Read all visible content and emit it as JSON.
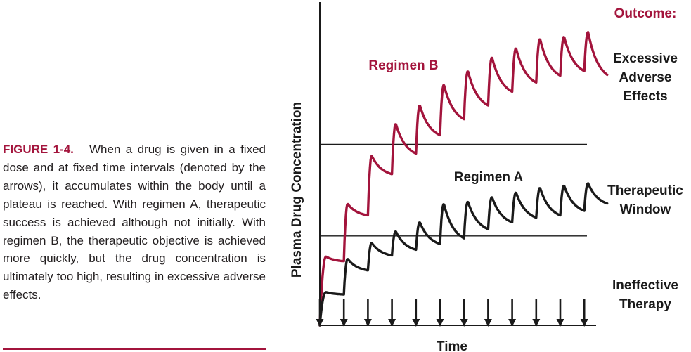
{
  "caption": {
    "label": "FIGURE 1-4.",
    "text": "When a drug is given in a fixed dose and at fixed time intervals (denoted by the arrows), it accumulates within the body until a plateau is reached. With regimen A, therapeutic success is achieved although not initially. With regimen B, the therapeutic objective is achieved more quickly, but the drug concentration is ultimately too high, resulting in excessive adverse effects."
  },
  "colors": {
    "regimen_b": "#a3143c",
    "regimen_a": "#1a1a1a",
    "outcome_heading": "#a3143c",
    "caption_label": "#a3143c",
    "axis": "#1a1a1a"
  },
  "chart_data": {
    "type": "line",
    "xlabel": "Time",
    "ylabel": "Plasma Drug Concentration",
    "xlim": [
      0,
      11.6
    ],
    "ylim": [
      0,
      10
    ],
    "thresholds": [
      3.9,
      7.9
    ],
    "dose_times": [
      0,
      1,
      2,
      3,
      4,
      5,
      6,
      7,
      8,
      9,
      10,
      11
    ],
    "outcome_heading": "Outcome:",
    "zones": [
      {
        "name": "Excessive Adverse Effects",
        "lines": [
          "Excessive",
          "Adverse",
          "Effects"
        ]
      },
      {
        "name": "Therapeutic Window",
        "lines": [
          "Therapeutic",
          "Window"
        ]
      },
      {
        "name": "Ineffective Therapy",
        "lines": [
          "Ineffective",
          "Therapy"
        ]
      }
    ],
    "series": [
      {
        "name": "Regimen B",
        "peaks": [
          3.0,
          5.3,
          7.4,
          8.8,
          9.6,
          10.5,
          11.1,
          11.7,
          12.1,
          12.5,
          12.6,
          12.8
        ],
        "troughs": [
          2.8,
          4.8,
          6.6,
          7.5,
          8.3,
          9.0,
          9.6,
          10.2,
          10.6,
          10.9,
          11.1
        ],
        "end": 10.9,
        "decay": 2.0
      },
      {
        "name": "Regimen A",
        "peaks": [
          1.45,
          2.9,
          3.6,
          4.1,
          4.5,
          5.3,
          5.4,
          5.6,
          5.8,
          6.0,
          6.1,
          6.2
        ],
        "troughs": [
          1.35,
          2.4,
          3.05,
          3.3,
          3.55,
          3.8,
          4.2,
          4.5,
          4.7,
          4.8,
          5.0
        ],
        "end": 5.3,
        "decay": 2.0
      }
    ]
  }
}
